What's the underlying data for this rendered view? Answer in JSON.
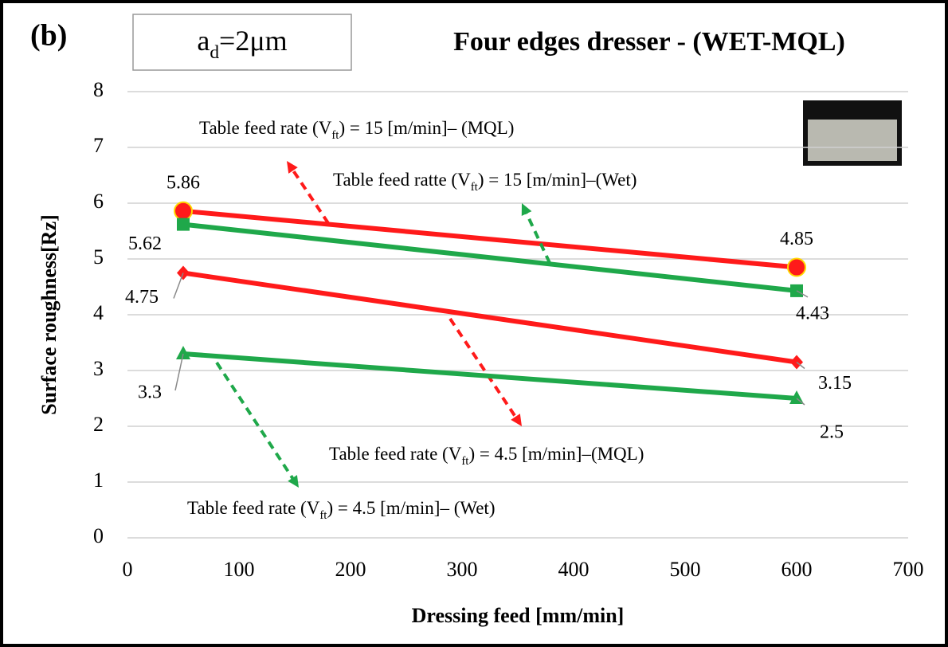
{
  "chart_data": {
    "type": "line",
    "panel_label": "(b)",
    "subtitle_parts": [
      "a",
      "d",
      "=2μm"
    ],
    "title": "Four edges dresser - (WET-MQL)",
    "x_label": "Dressing feed [mm/min]",
    "y_label": "Surface roughness[Rz]",
    "x": [
      50,
      600
    ],
    "series": [
      {
        "name_parts": [
          "Table feed rate (V",
          "ft",
          ") = 15 [m/min]– (MQL)"
        ],
        "color": "#ff1a1a",
        "marker": "circle",
        "values": [
          5.86,
          4.85
        ]
      },
      {
        "name_parts": [
          "Table feed ratte (V",
          "ft",
          ") = 15 [m/min]–(Wet)"
        ],
        "color": "#1fa84a",
        "marker": "square",
        "values": [
          5.62,
          4.43
        ]
      },
      {
        "name_parts": [
          "Table  feed rate (V",
          "ft",
          ") = 4.5 [m/min]–(MQL)"
        ],
        "color": "#ff1a1a",
        "marker": "diamond",
        "values": [
          4.75,
          3.15
        ]
      },
      {
        "name_parts": [
          "Table feed rate (V",
          "ft",
          ") = 4.5 [m/min]– (Wet)"
        ],
        "color": "#1fa84a",
        "marker": "triangle",
        "values": [
          3.3,
          2.5
        ]
      }
    ],
    "xlim": [
      0,
      700
    ],
    "xticks": [
      0,
      100,
      200,
      300,
      400,
      500,
      600,
      700
    ],
    "ylim": [
      0,
      8
    ],
    "yticks": [
      0,
      1,
      2,
      3,
      4,
      5,
      6,
      7,
      8
    ],
    "grid": true
  }
}
